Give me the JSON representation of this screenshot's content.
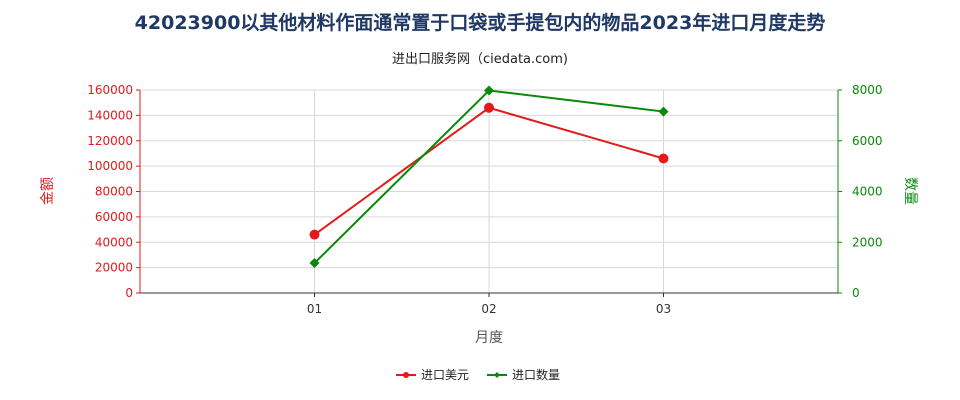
{
  "title": "42023900以其他材料作面通常置于口袋或手提包内的物品2023年进口月度走势",
  "subtitle": "进出口服务网（ciedata.com)",
  "colors": {
    "amount": "#e31a1c",
    "quantity": "#0a8a0a",
    "title": "#1f3864"
  },
  "chart_data": {
    "type": "line",
    "categories": [
      "01",
      "02",
      "03"
    ],
    "xlabel": "月度",
    "ylabel_left": "金额",
    "ylabel_right": "数量",
    "ylim_left": [
      0,
      160000
    ],
    "ylim_right": [
      0,
      8000
    ],
    "yticks_left": [
      "0",
      "20000",
      "40000",
      "60000",
      "80000",
      "100000",
      "120000",
      "140000",
      "160000"
    ],
    "yticks_right": [
      "0",
      "2000",
      "4000",
      "6000",
      "8000"
    ],
    "grid": true,
    "legend_position": "bottom-center",
    "series": [
      {
        "name": "进口美元",
        "axis": "left",
        "marker": "circle",
        "values": [
          46000,
          146000,
          106000
        ]
      },
      {
        "name": "进口数量",
        "axis": "right",
        "marker": "diamond",
        "values": [
          1180,
          7980,
          7150
        ]
      }
    ]
  }
}
